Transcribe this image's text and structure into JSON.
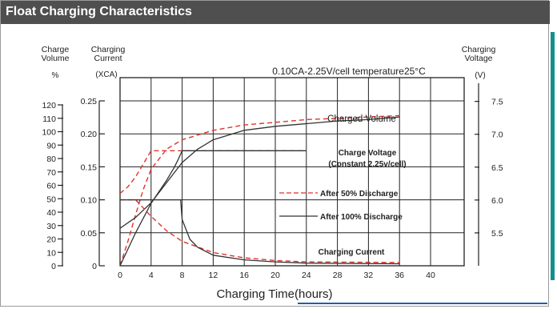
{
  "header": {
    "title": "Float Charging Characteristics"
  },
  "chart_data": {
    "type": "line",
    "title": "",
    "subtitle": "0.10CA-2.25V/cell   temperature25°C",
    "xlabel": "Charging Time(hours)",
    "x_ticks": [
      "0",
      "4",
      "8",
      "12",
      "16",
      "20",
      "24",
      "28",
      "32",
      "36",
      "40"
    ],
    "xlim": [
      0,
      40
    ],
    "axes": {
      "charge_volume": {
        "label_line1": "Charge",
        "label_line2": "Volume",
        "unit": "%",
        "ticks": [
          "0",
          "10",
          "20",
          "30",
          "40",
          "50",
          "60",
          "70",
          "80",
          "90",
          "100",
          "110",
          "120"
        ],
        "range": [
          0,
          120
        ]
      },
      "charging_current": {
        "label_line1": "Charging",
        "label_line2": "Current",
        "unit": "(XCA)",
        "ticks": [
          "0",
          "0.05",
          "0.10",
          "0.15",
          "0.20",
          "0.25"
        ],
        "range": [
          0,
          0.25
        ]
      },
      "charging_voltage": {
        "label_line1": "Charging",
        "label_line2": "Voltage",
        "unit": "(V)",
        "ticks": [
          "5.5",
          "6.0",
          "6.5",
          "7.0",
          "7.5"
        ],
        "range": [
          5.0,
          7.8
        ]
      }
    },
    "grid": true,
    "legend": [
      {
        "name": "After 50% Discharge",
        "style": "dashed",
        "color": "#e0322c"
      },
      {
        "name": "After 100% Discharge",
        "style": "solid",
        "color": "#333333"
      }
    ],
    "annotations": {
      "charged_volume": "Charged Volume",
      "charge_voltage_line1": "Charge Voltage",
      "charge_voltage_line2": "(Constant 2.25v/cell)",
      "charging_current": "Charging Current"
    },
    "series": [
      {
        "quantity": "charged volume (%)",
        "discharge": "50%",
        "style": "dashed",
        "x": [
          0,
          1,
          2,
          3,
          4,
          6,
          8,
          12,
          16,
          20,
          24,
          28,
          32,
          36
        ],
        "y": [
          0,
          18,
          38,
          57,
          72,
          87,
          94,
          101,
          105,
          107,
          109,
          110,
          111,
          112
        ]
      },
      {
        "quantity": "charged volume (%)",
        "discharge": "100%",
        "style": "solid",
        "x": [
          0,
          2,
          4,
          6,
          8,
          10,
          12,
          16,
          20,
          24,
          28,
          32,
          36
        ],
        "y": [
          28,
          36,
          47,
          62,
          77,
          87,
          94,
          101,
          104,
          106,
          108,
          109,
          111
        ]
      },
      {
        "quantity": "charge voltage (V)",
        "discharge": "50%",
        "style": "dashed",
        "x": [
          0,
          1,
          2,
          3,
          3.5,
          4,
          24
        ],
        "y": [
          6.1,
          6.2,
          6.35,
          6.55,
          6.65,
          6.75,
          6.75
        ]
      },
      {
        "quantity": "charge voltage (V)",
        "discharge": "100%",
        "style": "solid",
        "x": [
          0,
          2,
          4,
          6,
          7,
          7.5,
          8,
          24
        ],
        "y": [
          5.0,
          5.5,
          5.95,
          6.3,
          6.5,
          6.62,
          6.75,
          6.75
        ]
      },
      {
        "quantity": "charging current (XCA)",
        "discharge": "50%",
        "style": "dashed",
        "x": [
          0,
          2,
          4,
          6,
          8,
          12,
          16,
          20,
          24,
          36
        ],
        "y": [
          0.1,
          0.1,
          0.075,
          0.053,
          0.037,
          0.02,
          0.012,
          0.008,
          0.006,
          0.005
        ]
      },
      {
        "quantity": "charging current (XCA)",
        "discharge": "100%",
        "style": "solid",
        "x": [
          0,
          7.8,
          8,
          9,
          10,
          12,
          16,
          20,
          24,
          36
        ],
        "y": [
          0.1,
          0.1,
          0.07,
          0.04,
          0.028,
          0.016,
          0.009,
          0.006,
          0.004,
          0.003
        ]
      }
    ]
  }
}
